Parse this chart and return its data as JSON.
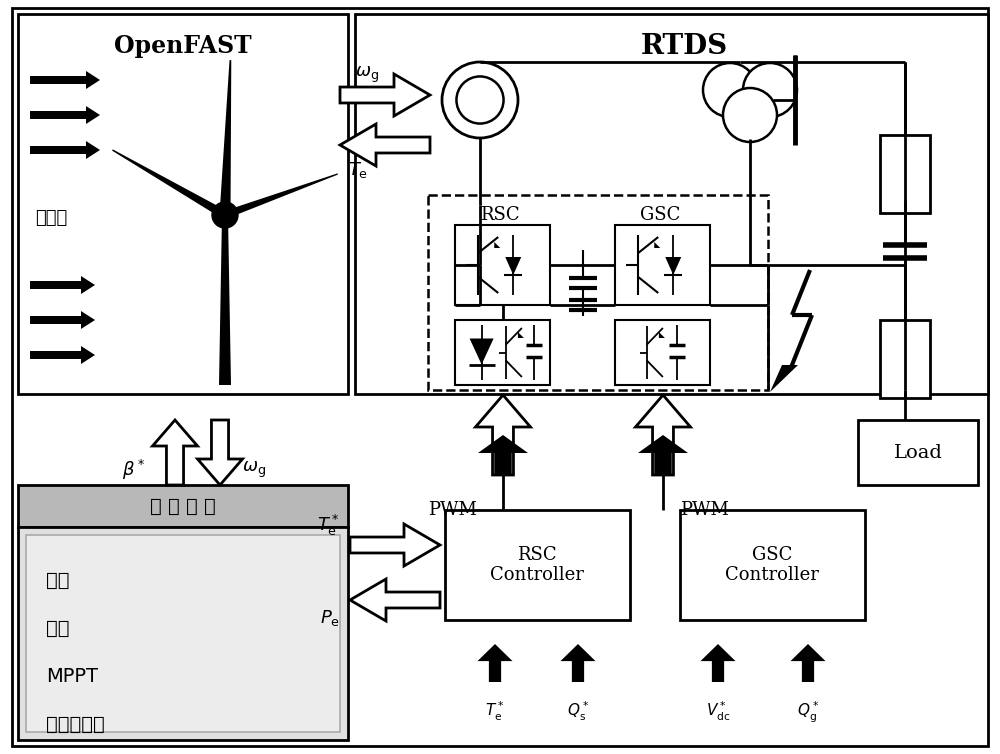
{
  "bg_color": "#ffffff",
  "openfast_label": "OpenFAST",
  "rtds_label": "RTDS",
  "turbulence_label": "湍流风",
  "main_controller_label": "主 控 制 器",
  "controller_items": [
    "启动",
    "停机",
    "MPPT",
    "槆距角控制"
  ],
  "rsc_label": "RSC",
  "gsc_label": "GSC",
  "rsc_controller_label": "RSC\nController",
  "gsc_controller_label": "GSC\nController",
  "load_label": "Load",
  "pwm_label": "PWM"
}
